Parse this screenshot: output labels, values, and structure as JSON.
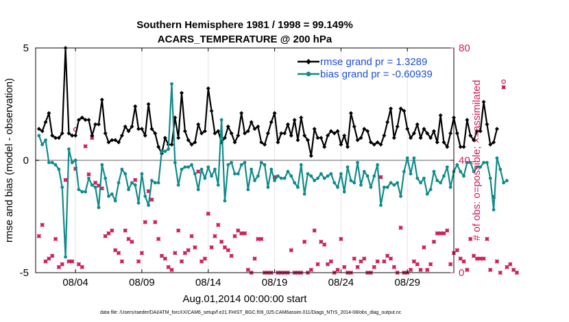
{
  "chart_data": {
    "type": "line",
    "title_line1": "Southern Hemisphere 1981 / 1998 = 99.149%",
    "title_line2": "ACARS_TEMPERATURE @ 200 hPa",
    "xlabel": "Aug.01,2014 00:00:00 start",
    "ylabel_left": "rmse and bias (model - observation)",
    "ylabel_right": "# of obs: o=possible; ×=assimilated",
    "xlim": [
      0,
      31.5
    ],
    "ylim_left": [
      -5,
      5
    ],
    "ylim_right": [
      0,
      80
    ],
    "x_ticks": [
      {
        "x": 3,
        "label": "08/04"
      },
      {
        "x": 8,
        "label": "08/09"
      },
      {
        "x": 13,
        "label": "08/14"
      },
      {
        "x": 18,
        "label": "08/19"
      },
      {
        "x": 23,
        "label": "08/24"
      },
      {
        "x": 28,
        "label": "08/29"
      }
    ],
    "y_ticks_left": [
      {
        "y": -5,
        "label": "-5"
      },
      {
        "y": 0,
        "label": "0"
      },
      {
        "y": 5,
        "label": "5"
      }
    ],
    "y_ticks_right": [
      {
        "y": 0,
        "label": "0"
      },
      {
        "y": 40,
        "label": "40"
      },
      {
        "y": 80,
        "label": "80"
      }
    ],
    "zero_line": 0,
    "series": [
      {
        "name": "rmse",
        "legend": "rmse grand pr = 1.3289",
        "color": "#000000",
        "axis": "left",
        "values": [
          1.4,
          1.3,
          1.7,
          2.1,
          1.1,
          1.0,
          1.0,
          1.2,
          5.0,
          1.2,
          1.1,
          1.1,
          1.8,
          1.9,
          1.8,
          1.8,
          1.1,
          1.6,
          1.6,
          2.7,
          1.2,
          0.8,
          0.9,
          0.9,
          0.8,
          1.1,
          1.5,
          1.3,
          1.5,
          2.4,
          1.4,
          1.4,
          1.1,
          2.5,
          1.4,
          1.2,
          0.6,
          0.3,
          1.0,
          0.7,
          0.7,
          1.9,
          1.0,
          3.0,
          1.3,
          0.9,
          0.7,
          0.8,
          1.6,
          1.2,
          1.3,
          3.2,
          2.2,
          1.2,
          1.3,
          0.8,
          1.0,
          1.5,
          1.2,
          0.8,
          1.1,
          2.1,
          1.2,
          1.3,
          1.7,
          1.4,
          1.5,
          0.8,
          0.7,
          1.2,
          1.7,
          2.1,
          0.8,
          1.2,
          1.2,
          1.6,
          1.1,
          1.8,
          0.9,
          1.9,
          1.1,
          0.9,
          0.2,
          1.4,
          1.0,
          1.0,
          0.6,
          1.1,
          1.3,
          1.2,
          1.3,
          0.7,
          1.1,
          0.6,
          2.1,
          1.5,
          0.9,
          1.0,
          1.4,
          1.3,
          0.8,
          0.7,
          0.8,
          0.7,
          1.1,
          1.7,
          2.3,
          1.0,
          1.5,
          2.3,
          2.2,
          1.4,
          1.0,
          1.2,
          1.6,
          1.0,
          1.4,
          1.2,
          1.0,
          1.3,
          0.8,
          2.0,
          0.8,
          0.6,
          1.2,
          1.9,
          1.2,
          0.6,
          0.6,
          1.8,
          1.1,
          0.9,
          1.3,
          1.3,
          2.6,
          1.6,
          0.7,
          0.8,
          1.4
        ]
      },
      {
        "name": "bias",
        "legend": "bias grand pr = -0.60939",
        "color": "#108a8a",
        "axis": "left",
        "values": [
          1.1,
          0.7,
          0.9,
          -0.1,
          -0.1,
          -0.2,
          -0.4,
          -1.2,
          -4.3,
          0.5,
          -0.1,
          0.0,
          -1.3,
          -1.4,
          -1.4,
          -0.8,
          -1.1,
          -1.2,
          -2.1,
          -0.2,
          -0.8,
          -1.6,
          -1.5,
          -1.8,
          -1.0,
          -0.4,
          -0.6,
          -1.3,
          -1.0,
          -1.1,
          -1.9,
          -0.6,
          -1.6,
          -2.0,
          -0.9,
          -1.0,
          -1.0,
          0.4,
          0.4,
          0.5,
          3.4,
          -0.1,
          -1.1,
          -0.4,
          -0.3,
          -0.3,
          -0.2,
          -0.6,
          -1.3,
          -0.4,
          -0.8,
          -0.3,
          -0.7,
          -0.4,
          -1.1,
          1.8,
          -1.8,
          -0.2,
          -0.1,
          -0.6,
          -0.6,
          -0.2,
          -0.1,
          -1.3,
          -0.4,
          -0.9,
          -0.7,
          -0.1,
          -0.2,
          -1.2,
          -0.4,
          -0.9,
          -0.7,
          -0.8,
          -0.8,
          -0.5,
          -0.7,
          -1.0,
          -1.2,
          -0.2,
          -1.5,
          -0.6,
          -0.7,
          -0.9,
          -0.8,
          -0.6,
          -0.8,
          -0.7,
          -0.6,
          -1.0,
          -1.2,
          -0.6,
          -1.4,
          -0.3,
          -0.9,
          -1.0,
          -0.1,
          -1.1,
          -0.5,
          -0.7,
          -1.2,
          -0.7,
          -0.2,
          -2.0,
          -1.2,
          -1.2,
          -1.0,
          -1.1,
          -1.0,
          -1.6,
          -0.5,
          0.1,
          -0.6,
          0.1,
          -0.8,
          -1.0,
          -0.8,
          -1.5,
          -1.3,
          -0.5,
          -0.9,
          -1.0,
          -0.7,
          -0.3,
          -1.2,
          -0.5,
          -0.2,
          -0.5,
          -0.7,
          -0.1,
          -0.1,
          -0.5,
          -0.3,
          -0.3,
          -0.1,
          -0.1,
          -0.8,
          -2.2,
          0.1,
          -0.4,
          -1.0,
          -0.9
        ]
      }
    ],
    "obs_assimilated": {
      "marker": "x",
      "color": "#cc1f5a",
      "axis": "right",
      "values": [
        13,
        17,
        4,
        5,
        6,
        12,
        2,
        3,
        33,
        4,
        4,
        37,
        3,
        2,
        45,
        35,
        48,
        32,
        31,
        30,
        13,
        14,
        15,
        8,
        7,
        4,
        15,
        12,
        11,
        33,
        4,
        7,
        18,
        29,
        26,
        18,
        12,
        6,
        5,
        2,
        1,
        7,
        15,
        4,
        7,
        8,
        13,
        9,
        36,
        4,
        5,
        21,
        9,
        13,
        17,
        11,
        9,
        8,
        6,
        13,
        15,
        14,
        14,
        1,
        0,
        5,
        12,
        12,
        0,
        0,
        0,
        34,
        0,
        0,
        0,
        0,
        8,
        0,
        0,
        0,
        11,
        0,
        1,
        15,
        3,
        11,
        10,
        3,
        4,
        0,
        1,
        12,
        2,
        0,
        0,
        5,
        2,
        4,
        5,
        0,
        0,
        2,
        4,
        34,
        4,
        6,
        5,
        2,
        0,
        16,
        0,
        0,
        1,
        4,
        3,
        1,
        9,
        1,
        3,
        11,
        14,
        14,
        14,
        15,
        3,
        7,
        8,
        5,
        4,
        1,
        12,
        6,
        5,
        5,
        5,
        12,
        1,
        27,
        4,
        0,
        66,
        2,
        3,
        1,
        0
      ]
    },
    "obs_possible": {
      "marker": "o",
      "color": "#cc1f5a",
      "axis": "right",
      "values": [
        13,
        17,
        4,
        5,
        6,
        12,
        2,
        3,
        33,
        4,
        4,
        51,
        3,
        2,
        45,
        35,
        48,
        32,
        31,
        30,
        13,
        14,
        15,
        8,
        7,
        4,
        15,
        12,
        11,
        33,
        4,
        7,
        18,
        29,
        26,
        18,
        12,
        6,
        5,
        2,
        1,
        7,
        15,
        4,
        7,
        8,
        13,
        9,
        36,
        4,
        5,
        21,
        9,
        13,
        17,
        11,
        9,
        8,
        6,
        13,
        15,
        14,
        14,
        1,
        0,
        5,
        12,
        12,
        0,
        0,
        0,
        34,
        0,
        0,
        0,
        0,
        8,
        0,
        0,
        0,
        11,
        0,
        1,
        15,
        3,
        11,
        10,
        3,
        4,
        0,
        1,
        12,
        2,
        0,
        0,
        5,
        2,
        4,
        5,
        0,
        0,
        2,
        4,
        34,
        4,
        6,
        5,
        2,
        0,
        16,
        0,
        0,
        1,
        4,
        3,
        1,
        9,
        1,
        3,
        11,
        14,
        14,
        14,
        15,
        3,
        7,
        8,
        5,
        4,
        1,
        12,
        6,
        5,
        5,
        5,
        12,
        1,
        27,
        4,
        0,
        68,
        2,
        3,
        1,
        0
      ]
    },
    "footnote": "data file: /Users/raeder/DAI/ATM_forcXX/CAM6_setup/f.e21.FHIST_BGC.f09_025.CAM6assim.011/Diags_NTrS_2014-08/obs_diag_output.nc"
  }
}
